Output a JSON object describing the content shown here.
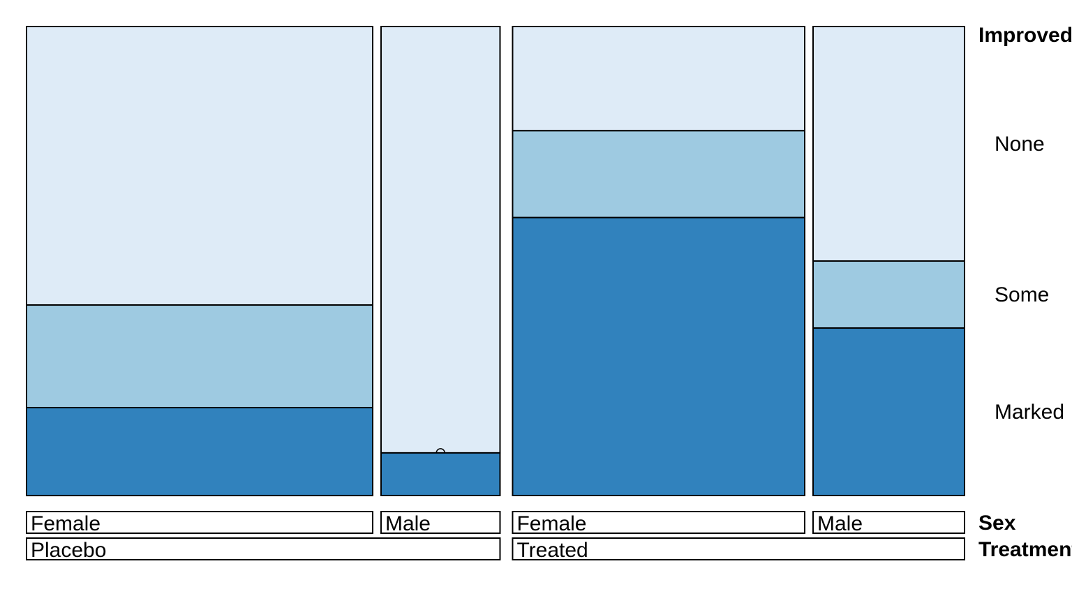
{
  "chart_data": {
    "type": "mosaic",
    "row_var": "Improved",
    "row_levels": [
      "None",
      "Some",
      "Marked"
    ],
    "col_vars": [
      "Treatment",
      "Sex"
    ],
    "colors": {
      "None": "#deebf7",
      "Some": "#9ecae1",
      "Marked": "#3182bd"
    },
    "legend_labels": {
      "Improved": "Improved",
      "Sex": "Sex",
      "Treatment": "Treatment"
    },
    "cells": [
      {
        "treatment": "Placebo",
        "sex": "Female",
        "share": 0.3721,
        "proportions": {
          "None": 0.5938,
          "Some": 0.2188,
          "Marked": 0.1875
        }
      },
      {
        "treatment": "Placebo",
        "sex": "Male",
        "share": 0.1279,
        "proportions": {
          "None": 0.9091,
          "Some": 0.0,
          "Marked": 0.0909
        }
      },
      {
        "treatment": "Treated",
        "sex": "Female",
        "share": 0.314,
        "proportions": {
          "None": 0.2222,
          "Some": 0.1852,
          "Marked": 0.5926
        }
      },
      {
        "treatment": "Treated",
        "sex": "Male",
        "share": 0.1628,
        "proportions": {
          "None": 0.5,
          "Some": 0.1429,
          "Marked": 0.3571
        }
      }
    ],
    "treatments": [
      "Placebo",
      "Treated"
    ]
  }
}
